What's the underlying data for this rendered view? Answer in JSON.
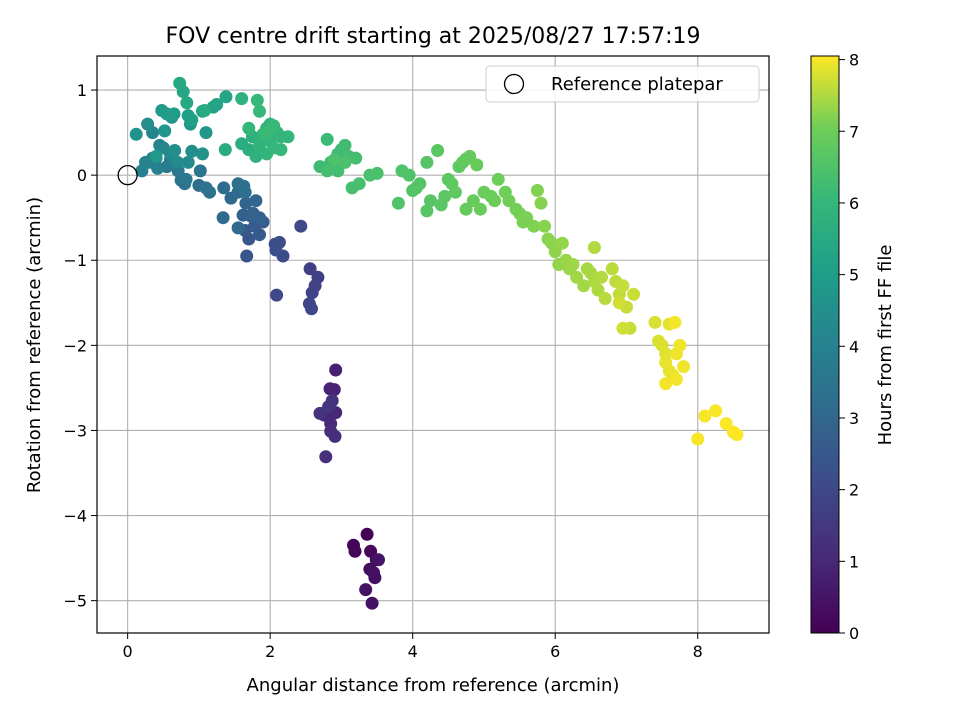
{
  "chart_data": {
    "type": "scatter",
    "title": "FOV centre drift starting at 2025/08/27 17:57:19",
    "xlabel": "Angular distance from reference (arcmin)",
    "ylabel": "Rotation from reference (arcmin)",
    "xlim": [
      -0.43,
      9.0
    ],
    "ylim": [
      -5.38,
      1.4
    ],
    "xticks": [
      0,
      2,
      4,
      6,
      8
    ],
    "yticks": [
      1,
      0,
      -1,
      -2,
      -3,
      -4,
      -5
    ],
    "xtick_labels": [
      "0",
      "2",
      "4",
      "6",
      "8"
    ],
    "ytick_labels": [
      "1",
      "0",
      "−1",
      "−2",
      "−3",
      "−4",
      "−5"
    ],
    "grid": true,
    "legend": {
      "label": "Reference platepar",
      "placement": "top-right"
    },
    "reference_point": {
      "x": 0,
      "y": 0
    },
    "colorbar": {
      "label": "Hours from first FF file",
      "range": [
        0,
        8.05
      ],
      "ticks": [
        0,
        1,
        2,
        3,
        4,
        5,
        6,
        7,
        8
      ],
      "tick_labels": [
        "0",
        "1",
        "2",
        "3",
        "4",
        "5",
        "6",
        "7",
        "8"
      ],
      "colormap": "viridis"
    },
    "points": [
      [
        3.36,
        -4.22,
        0.05
      ],
      [
        3.17,
        -4.35,
        0.1
      ],
      [
        3.19,
        -4.42,
        0.12
      ],
      [
        3.41,
        -4.42,
        0.18
      ],
      [
        3.49,
        -4.52,
        0.25
      ],
      [
        3.4,
        -4.63,
        0.3
      ],
      [
        3.45,
        -4.67,
        0.33
      ],
      [
        3.47,
        -4.73,
        0.36
      ],
      [
        3.34,
        -4.87,
        0.4
      ],
      [
        3.43,
        -5.03,
        0.45
      ],
      [
        3.52,
        -4.52,
        0.5
      ],
      [
        2.92,
        -2.29,
        0.8
      ],
      [
        2.84,
        -2.51,
        0.85
      ],
      [
        2.9,
        -2.52,
        0.9
      ],
      [
        2.92,
        -2.79,
        0.95
      ],
      [
        2.85,
        -2.79,
        1.0
      ],
      [
        2.76,
        -2.82,
        1.05
      ],
      [
        2.85,
        -2.92,
        1.1
      ],
      [
        2.85,
        -3.01,
        1.15
      ],
      [
        2.91,
        -3.07,
        1.2
      ],
      [
        2.78,
        -3.31,
        1.25
      ],
      [
        2.87,
        -2.65,
        1.3
      ],
      [
        2.7,
        -2.8,
        1.35
      ],
      [
        2.82,
        -2.72,
        1.4
      ],
      [
        2.56,
        -1.1,
        1.7
      ],
      [
        2.67,
        -1.2,
        1.75
      ],
      [
        2.63,
        -1.3,
        1.8
      ],
      [
        2.59,
        -1.38,
        1.85
      ],
      [
        2.55,
        -1.51,
        1.9
      ],
      [
        2.58,
        -1.57,
        1.95
      ],
      [
        2.09,
        -1.41,
        2.0
      ],
      [
        2.43,
        -0.6,
        2.05
      ],
      [
        2.18,
        -0.95,
        2.1
      ],
      [
        2.07,
        -0.81,
        2.15
      ],
      [
        2.13,
        -0.79,
        2.2
      ],
      [
        2.08,
        -0.88,
        2.25
      ],
      [
        1.67,
        -0.95,
        2.4
      ],
      [
        1.7,
        -0.75,
        2.45
      ],
      [
        1.65,
        -0.65,
        2.5
      ],
      [
        1.85,
        -0.7,
        2.55
      ],
      [
        1.78,
        -0.6,
        2.6
      ],
      [
        1.9,
        -0.55,
        2.65
      ],
      [
        1.73,
        -0.48,
        2.7
      ],
      [
        1.62,
        -0.47,
        2.75
      ],
      [
        1.85,
        -0.5,
        2.8
      ],
      [
        1.76,
        -0.45,
        2.85
      ],
      [
        1.66,
        -0.33,
        2.9
      ],
      [
        1.8,
        -0.3,
        2.95
      ],
      [
        1.55,
        -0.2,
        3.0
      ],
      [
        1.45,
        -0.27,
        3.05
      ],
      [
        1.55,
        -0.62,
        3.1
      ],
      [
        1.34,
        -0.5,
        3.15
      ],
      [
        1.35,
        -0.15,
        3.2
      ],
      [
        1.65,
        -0.2,
        3.25
      ],
      [
        1.63,
        -0.13,
        3.3
      ],
      [
        1.55,
        -0.1,
        3.35
      ],
      [
        1.0,
        -0.12,
        3.3
      ],
      [
        1.15,
        -0.2,
        3.35
      ],
      [
        1.1,
        -0.15,
        3.4
      ],
      [
        0.8,
        -0.1,
        3.45
      ],
      [
        0.75,
        -0.06,
        3.5
      ],
      [
        1.02,
        0.05,
        3.55
      ],
      [
        0.82,
        -0.05,
        3.6
      ],
      [
        0.71,
        0.05,
        3.65
      ],
      [
        0.4,
        0.2,
        3.7
      ],
      [
        0.55,
        0.1,
        3.75
      ],
      [
        0.35,
        0.2,
        3.8
      ],
      [
        0.6,
        0.18,
        3.85
      ],
      [
        0.3,
        0.15,
        3.9
      ],
      [
        0.42,
        0.08,
        3.95
      ],
      [
        0.2,
        0.05,
        4.0
      ],
      [
        0.25,
        0.15,
        4.05
      ],
      [
        0.45,
        0.35,
        4.1
      ],
      [
        0.35,
        0.5,
        4.15
      ],
      [
        0.5,
        0.32,
        4.2
      ],
      [
        0.6,
        0.25,
        4.25
      ],
      [
        0.7,
        0.15,
        4.3
      ],
      [
        0.85,
        0.15,
        4.35
      ],
      [
        0.9,
        0.28,
        4.4
      ],
      [
        0.28,
        0.6,
        4.45
      ],
      [
        0.66,
        0.29,
        4.5
      ],
      [
        0.62,
        0.68,
        4.55
      ],
      [
        1.05,
        0.25,
        4.6
      ],
      [
        0.12,
        0.48,
        4.65
      ],
      [
        0.52,
        0.52,
        4.7
      ],
      [
        0.88,
        0.6,
        4.75
      ],
      [
        1.1,
        0.5,
        4.8
      ],
      [
        0.4,
        0.22,
        4.85
      ],
      [
        0.48,
        0.76,
        4.9
      ],
      [
        0.55,
        0.72,
        4.95
      ],
      [
        0.65,
        0.72,
        5.0
      ],
      [
        0.85,
        0.7,
        5.05
      ],
      [
        0.9,
        0.65,
        5.1
      ],
      [
        1.05,
        0.75,
        5.15
      ],
      [
        1.2,
        0.8,
        5.2
      ],
      [
        1.25,
        0.83,
        5.25
      ],
      [
        1.38,
        0.92,
        5.3
      ],
      [
        0.78,
        0.98,
        5.35
      ],
      [
        0.83,
        0.85,
        5.4
      ],
      [
        0.73,
        1.08,
        5.45
      ],
      [
        1.08,
        0.76,
        5.5
      ],
      [
        1.37,
        0.3,
        5.55
      ],
      [
        1.6,
        0.37,
        5.6
      ],
      [
        1.7,
        0.3,
        5.65
      ],
      [
        1.75,
        0.45,
        5.7
      ],
      [
        1.6,
        0.9,
        5.75
      ],
      [
        1.8,
        0.22,
        5.8
      ],
      [
        1.95,
        0.55,
        5.82
      ],
      [
        2.0,
        0.6,
        5.84
      ],
      [
        2.1,
        0.5,
        5.86
      ],
      [
        1.85,
        0.35,
        5.88
      ],
      [
        2.0,
        0.4,
        5.9
      ],
      [
        2.15,
        0.45,
        5.92
      ],
      [
        2.25,
        0.45,
        5.94
      ],
      [
        1.95,
        0.25,
        5.96
      ],
      [
        2.05,
        0.32,
        5.98
      ],
      [
        1.7,
        0.55,
        6.0
      ],
      [
        1.9,
        0.48,
        6.02
      ],
      [
        2.15,
        0.3,
        6.04
      ],
      [
        1.82,
        0.88,
        6.06
      ],
      [
        1.85,
        0.75,
        6.08
      ],
      [
        2.05,
        0.58,
        6.1
      ],
      [
        1.95,
        0.5,
        6.12
      ],
      [
        2.8,
        0.42,
        6.15
      ],
      [
        2.7,
        0.1,
        6.18
      ],
      [
        2.85,
        0.15,
        6.2
      ],
      [
        2.95,
        0.25,
        6.22
      ],
      [
        3.0,
        0.3,
        6.24
      ],
      [
        3.05,
        0.35,
        6.26
      ],
      [
        3.1,
        0.22,
        6.28
      ],
      [
        3.2,
        0.2,
        6.3
      ],
      [
        2.95,
        0.05,
        6.32
      ],
      [
        2.8,
        0.05,
        6.34
      ],
      [
        3.15,
        -0.15,
        6.36
      ],
      [
        3.25,
        -0.1,
        6.38
      ],
      [
        3.4,
        0.0,
        6.4
      ],
      [
        3.5,
        0.02,
        6.42
      ],
      [
        3.05,
        0.15,
        6.44
      ],
      [
        2.9,
        0.18,
        6.46
      ],
      [
        3.8,
        -0.33,
        6.5
      ],
      [
        3.85,
        0.05,
        6.52
      ],
      [
        3.95,
        0.0,
        6.54
      ],
      [
        4.0,
        -0.18,
        6.56
      ],
      [
        4.1,
        -0.1,
        6.58
      ],
      [
        4.05,
        -0.15,
        6.6
      ],
      [
        4.2,
        0.15,
        6.62
      ],
      [
        4.25,
        -0.3,
        6.64
      ],
      [
        4.2,
        -0.42,
        6.66
      ],
      [
        4.35,
        0.29,
        6.68
      ],
      [
        4.4,
        -0.35,
        6.7
      ],
      [
        4.45,
        -0.25,
        6.72
      ],
      [
        4.5,
        -0.05,
        6.74
      ],
      [
        4.55,
        -0.1,
        6.76
      ],
      [
        4.6,
        -0.2,
        6.78
      ],
      [
        4.65,
        0.1,
        6.8
      ],
      [
        4.7,
        0.15,
        6.82
      ],
      [
        4.75,
        0.19,
        6.84
      ],
      [
        4.75,
        -0.4,
        6.86
      ],
      [
        4.8,
        0.22,
        6.88
      ],
      [
        4.85,
        -0.3,
        6.9
      ],
      [
        4.9,
        0.12,
        6.92
      ],
      [
        4.95,
        -0.4,
        6.94
      ],
      [
        5.0,
        -0.2,
        6.96
      ],
      [
        5.1,
        -0.25,
        6.98
      ],
      [
        5.15,
        -0.3,
        7.0
      ],
      [
        5.2,
        -0.05,
        7.02
      ],
      [
        5.3,
        -0.2,
        7.04
      ],
      [
        5.35,
        -0.3,
        7.06
      ],
      [
        5.45,
        -0.4,
        7.08
      ],
      [
        5.5,
        -0.45,
        7.1
      ],
      [
        5.55,
        -0.55,
        7.12
      ],
      [
        5.6,
        -0.5,
        7.14
      ],
      [
        5.7,
        -0.6,
        7.16
      ],
      [
        5.75,
        -0.18,
        7.18
      ],
      [
        5.8,
        -0.33,
        7.2
      ],
      [
        5.85,
        -0.6,
        7.22
      ],
      [
        5.9,
        -0.75,
        7.24
      ],
      [
        5.95,
        -0.8,
        7.26
      ],
      [
        6.0,
        -0.9,
        7.28
      ],
      [
        6.05,
        -1.05,
        7.3
      ],
      [
        6.1,
        -0.8,
        7.32
      ],
      [
        6.15,
        -1.0,
        7.34
      ],
      [
        6.2,
        -1.1,
        7.36
      ],
      [
        6.25,
        -1.05,
        7.38
      ],
      [
        6.3,
        -1.2,
        7.4
      ],
      [
        6.4,
        -1.3,
        7.42
      ],
      [
        6.45,
        -1.1,
        7.44
      ],
      [
        6.5,
        -1.15,
        7.46
      ],
      [
        6.55,
        -1.25,
        7.48
      ],
      [
        6.6,
        -1.35,
        7.5
      ],
      [
        6.55,
        -0.85,
        7.52
      ],
      [
        6.65,
        -1.2,
        7.54
      ],
      [
        6.7,
        -1.45,
        7.56
      ],
      [
        6.8,
        -1.1,
        7.58
      ],
      [
        6.85,
        -1.25,
        7.6
      ],
      [
        6.9,
        -1.4,
        7.62
      ],
      [
        6.95,
        -1.3,
        7.64
      ],
      [
        7.0,
        -1.55,
        7.66
      ],
      [
        7.05,
        -1.8,
        7.68
      ],
      [
        7.1,
        -1.4,
        7.7
      ],
      [
        6.95,
        -1.8,
        7.72
      ],
      [
        6.9,
        -1.5,
        7.74
      ],
      [
        7.4,
        -1.73,
        7.78
      ],
      [
        7.45,
        -1.95,
        7.8
      ],
      [
        7.5,
        -2.0,
        7.82
      ],
      [
        7.55,
        -2.1,
        7.84
      ],
      [
        7.6,
        -1.75,
        7.86
      ],
      [
        7.55,
        -2.2,
        7.88
      ],
      [
        7.6,
        -2.3,
        7.9
      ],
      [
        7.65,
        -2.35,
        7.92
      ],
      [
        7.7,
        -2.1,
        7.94
      ],
      [
        7.75,
        -2.0,
        7.95
      ],
      [
        7.8,
        -2.25,
        7.96
      ],
      [
        7.55,
        -2.45,
        7.97
      ],
      [
        7.7,
        -2.4,
        7.98
      ],
      [
        7.68,
        -1.73,
        7.99
      ],
      [
        8.0,
        -3.1,
        8.0
      ],
      [
        8.1,
        -2.83,
        8.01
      ],
      [
        8.25,
        -2.77,
        8.02
      ],
      [
        8.4,
        -2.92,
        8.03
      ],
      [
        8.55,
        -3.05,
        8.04
      ],
      [
        8.5,
        -3.02,
        8.05
      ]
    ]
  }
}
